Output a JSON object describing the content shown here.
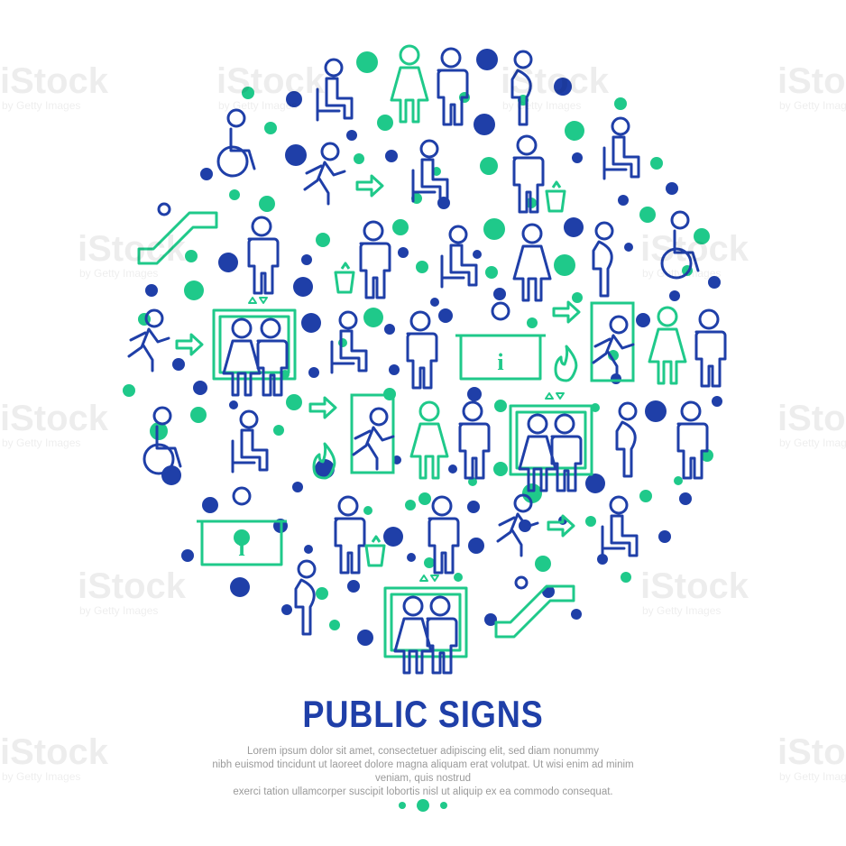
{
  "title": "PUBLIC SIGNS",
  "body_lines": [
    "Lorem ipsum dolor sit amet, consectetuer adipiscing elit, sed diam nonummy",
    "nibh euismod tincidunt ut laoreet dolore magna aliquam erat volutpat. Ut wisi enim ad minim veniam, quis nostrud",
    "exerci tation ullamcorper suscipit lobortis nisl ut aliquip ex ea commodo consequat."
  ],
  "watermark": {
    "brand": "iStock",
    "credit": "by Getty Images"
  },
  "icons": {
    "elevator_info_sign": "i"
  },
  "colors": {
    "navy": "#1f3fa8",
    "green": "#1fc98a",
    "title": "#1f3fa8",
    "text": "#9a9a9a"
  }
}
